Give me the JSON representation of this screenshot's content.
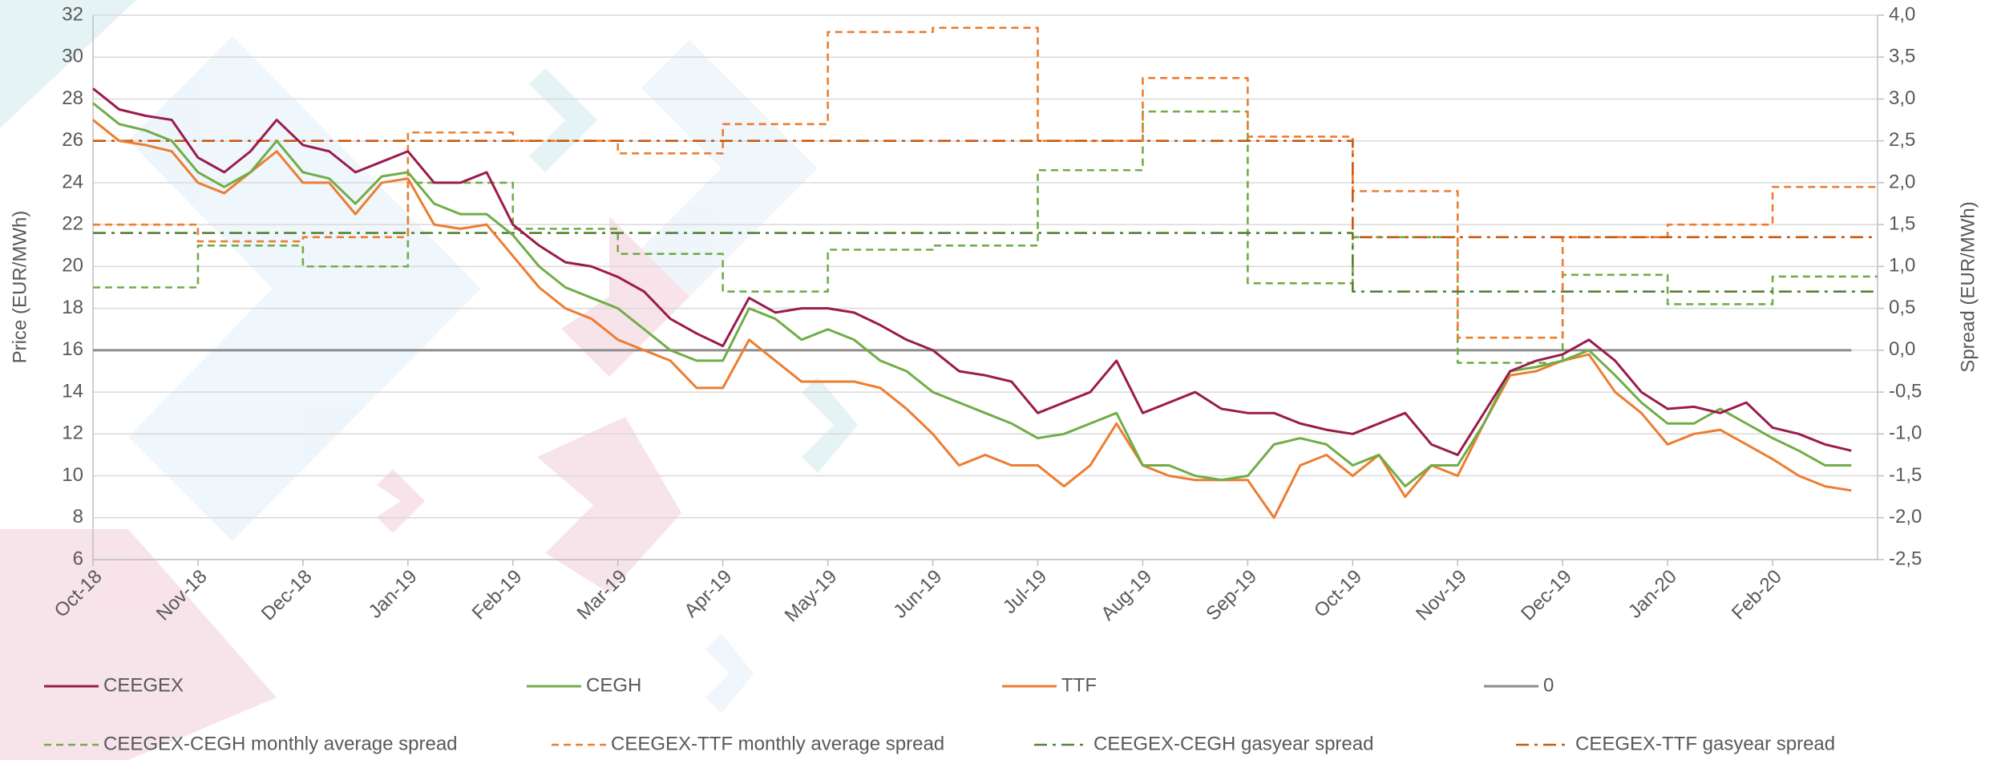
{
  "chart_data": {
    "type": "line",
    "ylabel": "Price (EUR/MWh)",
    "y2label": "Spread (EUR/MWh)",
    "categories": [
      "Oct-18",
      null,
      null,
      null,
      "Nov-18",
      null,
      null,
      null,
      "Dec-18",
      null,
      null,
      null,
      "Jan-19",
      null,
      null,
      null,
      "Feb-19",
      null,
      null,
      null,
      "Mar-19",
      null,
      null,
      null,
      "Apr-19",
      null,
      null,
      null,
      "May-19",
      null,
      null,
      null,
      "Jun-19",
      null,
      null,
      null,
      "Jul-19",
      null,
      null,
      null,
      "Aug-19",
      null,
      null,
      null,
      "Sep-19",
      null,
      null,
      null,
      "Oct-19",
      null,
      null,
      null,
      "Nov-19",
      null,
      null,
      null,
      "Dec-19",
      null,
      null,
      null,
      "Jan-20",
      null,
      null,
      null,
      "Feb-20",
      null,
      null,
      null
    ],
    "ylim": [
      6,
      32
    ],
    "yticks": [
      6,
      8,
      10,
      12,
      14,
      16,
      18,
      20,
      22,
      24,
      26,
      28,
      30,
      32
    ],
    "y2lim": [
      -2.5,
      4.0
    ],
    "y2ticks": [
      {
        "value": -2.5,
        "label": "-2,5"
      },
      {
        "value": -2.0,
        "label": "-2,0"
      },
      {
        "value": -1.5,
        "label": "-1,5"
      },
      {
        "value": -1.0,
        "label": "-1,0"
      },
      {
        "value": -0.5,
        "label": "-0,5"
      },
      {
        "value": 0,
        "label": "0,0"
      },
      {
        "value": 0.5,
        "label": "0,5"
      },
      {
        "value": 1.0,
        "label": "1,0"
      },
      {
        "value": 1.5,
        "label": "1,5"
      },
      {
        "value": 2.0,
        "label": "2,0"
      },
      {
        "value": 2.5,
        "label": "2,5"
      },
      {
        "value": 3.0,
        "label": "3,0"
      },
      {
        "value": 3.5,
        "label": "3,5"
      },
      {
        "value": 4.0,
        "label": "4,0"
      }
    ],
    "grid": true,
    "series": [
      {
        "name": "CEEGEX",
        "color": "#9b1b4c",
        "dash": "solid",
        "values": [
          28.5,
          27.5,
          27.2,
          27.0,
          25.2,
          24.5,
          25.5,
          27.0,
          25.8,
          25.5,
          24.5,
          25.0,
          25.5,
          24.0,
          24.0,
          24.5,
          22.0,
          21.0,
          20.2,
          20.0,
          19.5,
          18.8,
          17.5,
          16.8,
          16.2,
          18.5,
          17.8,
          18.0,
          18.0,
          17.8,
          17.2,
          16.5,
          16.0,
          15.0,
          14.8,
          14.5,
          13.0,
          13.5,
          14.0,
          15.5,
          13.0,
          13.5,
          14.0,
          13.2,
          13.0,
          13.0,
          12.5,
          12.2,
          12.0,
          12.5,
          13.0,
          11.5,
          11.0,
          13.0,
          15.0,
          15.5,
          15.8,
          16.5,
          15.5,
          14.0,
          13.2,
          13.3,
          13.0,
          13.5,
          12.3,
          12.0,
          11.5,
          11.2
        ]
      },
      {
        "name": "CEGH",
        "color": "#70ad47",
        "dash": "solid",
        "values": [
          27.8,
          26.8,
          26.5,
          26.0,
          24.5,
          23.8,
          24.5,
          26.0,
          24.5,
          24.2,
          23.0,
          24.3,
          24.5,
          23.0,
          22.5,
          22.5,
          21.5,
          20.0,
          19.0,
          18.5,
          18.0,
          17.0,
          16.0,
          15.5,
          15.5,
          18.0,
          17.5,
          16.5,
          17.0,
          16.5,
          15.5,
          15.0,
          14.0,
          13.5,
          13.0,
          12.5,
          11.8,
          12.0,
          12.5,
          13.0,
          10.5,
          10.5,
          10.0,
          9.8,
          10.0,
          11.5,
          11.8,
          11.5,
          10.5,
          11.0,
          9.5,
          10.5,
          10.5,
          12.5,
          15.0,
          15.2,
          15.5,
          16.0,
          14.8,
          13.5,
          12.5,
          12.5,
          13.2,
          12.5,
          11.8,
          11.2,
          10.5,
          10.5
        ]
      },
      {
        "name": "TTF",
        "color": "#ed7d31",
        "dash": "solid",
        "values": [
          27.0,
          26.0,
          25.8,
          25.5,
          24.0,
          23.5,
          24.5,
          25.5,
          24.0,
          24.0,
          22.5,
          24.0,
          24.2,
          22.0,
          21.8,
          22.0,
          20.5,
          19.0,
          18.0,
          17.5,
          16.5,
          16.0,
          15.5,
          14.2,
          14.2,
          16.5,
          15.5,
          14.5,
          14.5,
          14.5,
          14.2,
          13.2,
          12.0,
          10.5,
          11.0,
          10.5,
          10.5,
          9.5,
          10.5,
          12.5,
          10.5,
          10.0,
          9.8,
          9.8,
          9.8,
          8.0,
          10.5,
          11.0,
          10.0,
          11.0,
          9.0,
          10.5,
          10.0,
          12.5,
          14.8,
          15.0,
          15.5,
          15.8,
          14.0,
          13.0,
          11.5,
          12.0,
          12.2,
          11.5,
          10.8,
          10.0,
          9.5,
          9.3
        ]
      },
      {
        "name": "0",
        "color": "#8c8c8c",
        "dash": "solid",
        "axis": "y2",
        "values": [
          0,
          0,
          0,
          0,
          0,
          0,
          0,
          0,
          0,
          0,
          0,
          0,
          0,
          0,
          0,
          0,
          0,
          0,
          0,
          0,
          0,
          0,
          0,
          0,
          0,
          0,
          0,
          0,
          0,
          0,
          0,
          0,
          0,
          0,
          0,
          0,
          0,
          0,
          0,
          0,
          0,
          0,
          0,
          0,
          0,
          0,
          0,
          0,
          0,
          0,
          0,
          0,
          0,
          0,
          0,
          0,
          0,
          0,
          0,
          0,
          0,
          0,
          0,
          0,
          0,
          0,
          0,
          0
        ]
      },
      {
        "name": "CEEGEX-CEGH monthly average spread",
        "color": "#70ad47",
        "dash": "dashed",
        "step": true,
        "axis": "y2",
        "values": [
          0.75,
          0.75,
          0.75,
          0.75,
          1.25,
          1.25,
          1.25,
          1.25,
          1.0,
          1.0,
          1.0,
          1.0,
          2.0,
          2.0,
          2.0,
          2.0,
          1.45,
          1.45,
          1.45,
          1.45,
          1.15,
          1.15,
          1.15,
          1.15,
          0.7,
          0.7,
          0.7,
          0.7,
          1.2,
          1.2,
          1.2,
          1.2,
          1.25,
          1.25,
          1.25,
          1.25,
          2.15,
          2.15,
          2.15,
          2.15,
          2.85,
          2.85,
          2.85,
          2.85,
          0.8,
          0.8,
          0.8,
          0.8,
          1.35,
          1.35,
          1.35,
          1.35,
          -0.15,
          -0.15,
          -0.15,
          -0.15,
          0.9,
          0.9,
          0.9,
          0.9,
          0.55,
          0.55,
          0.55,
          0.55,
          0.88,
          0.88,
          0.88,
          0.88
        ]
      },
      {
        "name": "CEEGEX-TTF monthly average spread",
        "color": "#ed7d31",
        "dash": "dashed",
        "step": true,
        "axis": "y2",
        "values": [
          1.5,
          1.5,
          1.5,
          1.5,
          1.3,
          1.3,
          1.3,
          1.3,
          1.35,
          1.35,
          1.35,
          1.35,
          2.6,
          2.6,
          2.6,
          2.6,
          2.5,
          2.5,
          2.5,
          2.5,
          2.35,
          2.35,
          2.35,
          2.35,
          2.7,
          2.7,
          2.7,
          2.7,
          3.8,
          3.8,
          3.8,
          3.8,
          3.85,
          3.85,
          3.85,
          3.85,
          2.5,
          2.5,
          2.5,
          2.5,
          3.25,
          3.25,
          3.25,
          3.25,
          2.55,
          2.55,
          2.55,
          2.55,
          1.9,
          1.9,
          1.9,
          1.9,
          0.15,
          0.15,
          0.15,
          0.15,
          1.35,
          1.35,
          1.35,
          1.35,
          1.5,
          1.5,
          1.5,
          1.5,
          1.95,
          1.95,
          1.95,
          1.95
        ]
      },
      {
        "name": "CEEGEX-CEGH gasyear spread",
        "color": "#548235",
        "dash": "dashdot",
        "step": true,
        "axis": "y2",
        "values": [
          1.4,
          1.4,
          1.4,
          1.4,
          1.4,
          1.4,
          1.4,
          1.4,
          1.4,
          1.4,
          1.4,
          1.4,
          1.4,
          1.4,
          1.4,
          1.4,
          1.4,
          1.4,
          1.4,
          1.4,
          1.4,
          1.4,
          1.4,
          1.4,
          1.4,
          1.4,
          1.4,
          1.4,
          1.4,
          1.4,
          1.4,
          1.4,
          1.4,
          1.4,
          1.4,
          1.4,
          1.4,
          1.4,
          1.4,
          1.4,
          1.4,
          1.4,
          1.4,
          1.4,
          1.4,
          1.4,
          1.4,
          1.4,
          0.7,
          0.7,
          0.7,
          0.7,
          0.7,
          0.7,
          0.7,
          0.7,
          0.7,
          0.7,
          0.7,
          0.7,
          0.7,
          0.7,
          0.7,
          0.7,
          0.7,
          0.7,
          0.7,
          0.7
        ]
      },
      {
        "name": "CEEGEX-TTF gasyear spread",
        "color": "#c55a11",
        "dash": "dashdot",
        "step": true,
        "axis": "y2",
        "values": [
          2.5,
          2.5,
          2.5,
          2.5,
          2.5,
          2.5,
          2.5,
          2.5,
          2.5,
          2.5,
          2.5,
          2.5,
          2.5,
          2.5,
          2.5,
          2.5,
          2.5,
          2.5,
          2.5,
          2.5,
          2.5,
          2.5,
          2.5,
          2.5,
          2.5,
          2.5,
          2.5,
          2.5,
          2.5,
          2.5,
          2.5,
          2.5,
          2.5,
          2.5,
          2.5,
          2.5,
          2.5,
          2.5,
          2.5,
          2.5,
          2.5,
          2.5,
          2.5,
          2.5,
          2.5,
          2.5,
          2.5,
          2.5,
          1.35,
          1.35,
          1.35,
          1.35,
          1.35,
          1.35,
          1.35,
          1.35,
          1.35,
          1.35,
          1.35,
          1.35,
          1.35,
          1.35,
          1.35,
          1.35,
          1.35,
          1.35,
          1.35,
          1.35
        ]
      }
    ]
  }
}
